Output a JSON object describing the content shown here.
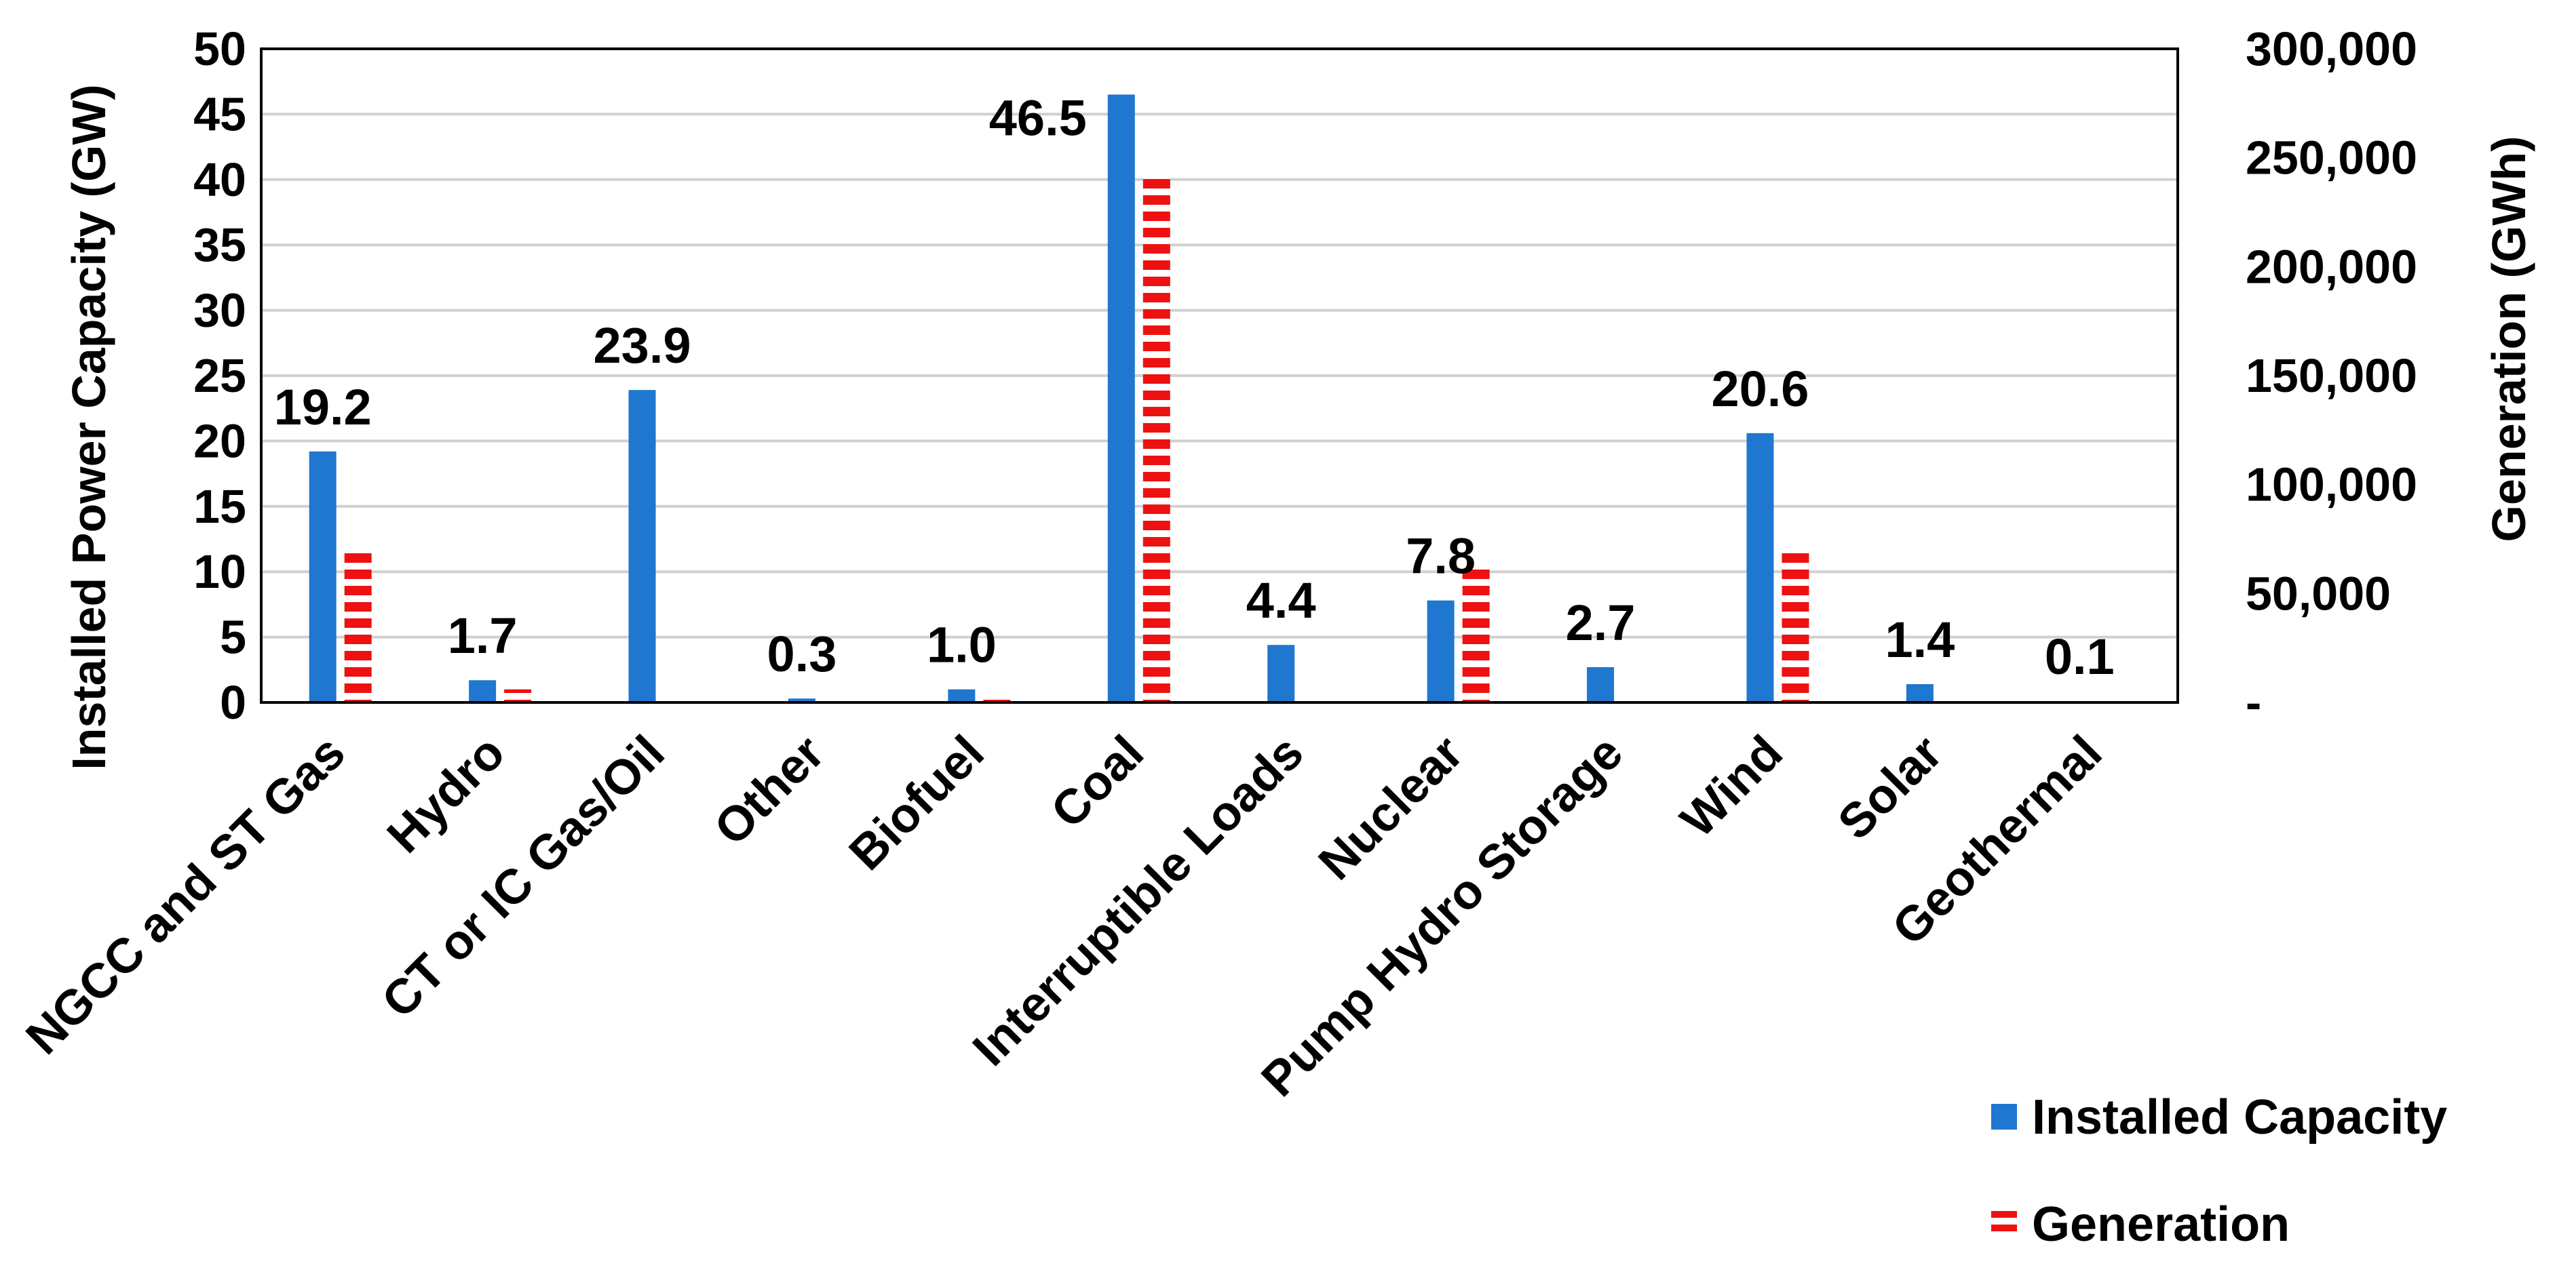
{
  "chart_data": {
    "type": "bar",
    "categories": [
      "NGCC and ST Gas",
      "Hydro",
      "CT or IC Gas/Oil",
      "Other",
      "Biofuel",
      "Coal",
      "Interruptible Loads",
      "Nuclear",
      "Pump Hydro Storage",
      "Wind",
      "Solar",
      "Geothermal"
    ],
    "series": [
      {
        "name": "Installed Capacity",
        "axis": "left",
        "color": "#1f77d0",
        "values": [
          19.2,
          1.7,
          23.9,
          0.3,
          1.0,
          46.5,
          4.4,
          7.8,
          2.7,
          20.6,
          1.4,
          0.1
        ],
        "data_labels": [
          "19.2",
          "1.7",
          "23.9",
          "0.3",
          "1.0",
          "46.5",
          "4.4",
          "7.8",
          "2.7",
          "20.6",
          "1.4",
          "0.1"
        ]
      },
      {
        "name": "Generation",
        "axis": "right",
        "color": "#ee1111",
        "pattern": "horizontal-stripes",
        "values": [
          70000,
          6000,
          0,
          0,
          4000,
          243000,
          0,
          62000,
          0,
          70000,
          0,
          0
        ]
      }
    ],
    "ylabel": "Installed Power Capacity (GW)",
    "y2label": "Generation (GWh)",
    "ylim": [
      0,
      50
    ],
    "y2lim": [
      0,
      300000
    ],
    "yticks": [
      "0",
      "5",
      "10",
      "15",
      "20",
      "25",
      "30",
      "35",
      "40",
      "45",
      "50"
    ],
    "y2ticks": [
      "-",
      "50,000",
      "100,000",
      "150,000",
      "200,000",
      "250,000",
      "300,000"
    ],
    "grid": "horizontal",
    "legend": {
      "placement": "bottom-right",
      "items": [
        {
          "label": "Installed Capacity",
          "color": "#1f77d0"
        },
        {
          "label": "Generation",
          "color": "#ee1111"
        }
      ]
    }
  }
}
